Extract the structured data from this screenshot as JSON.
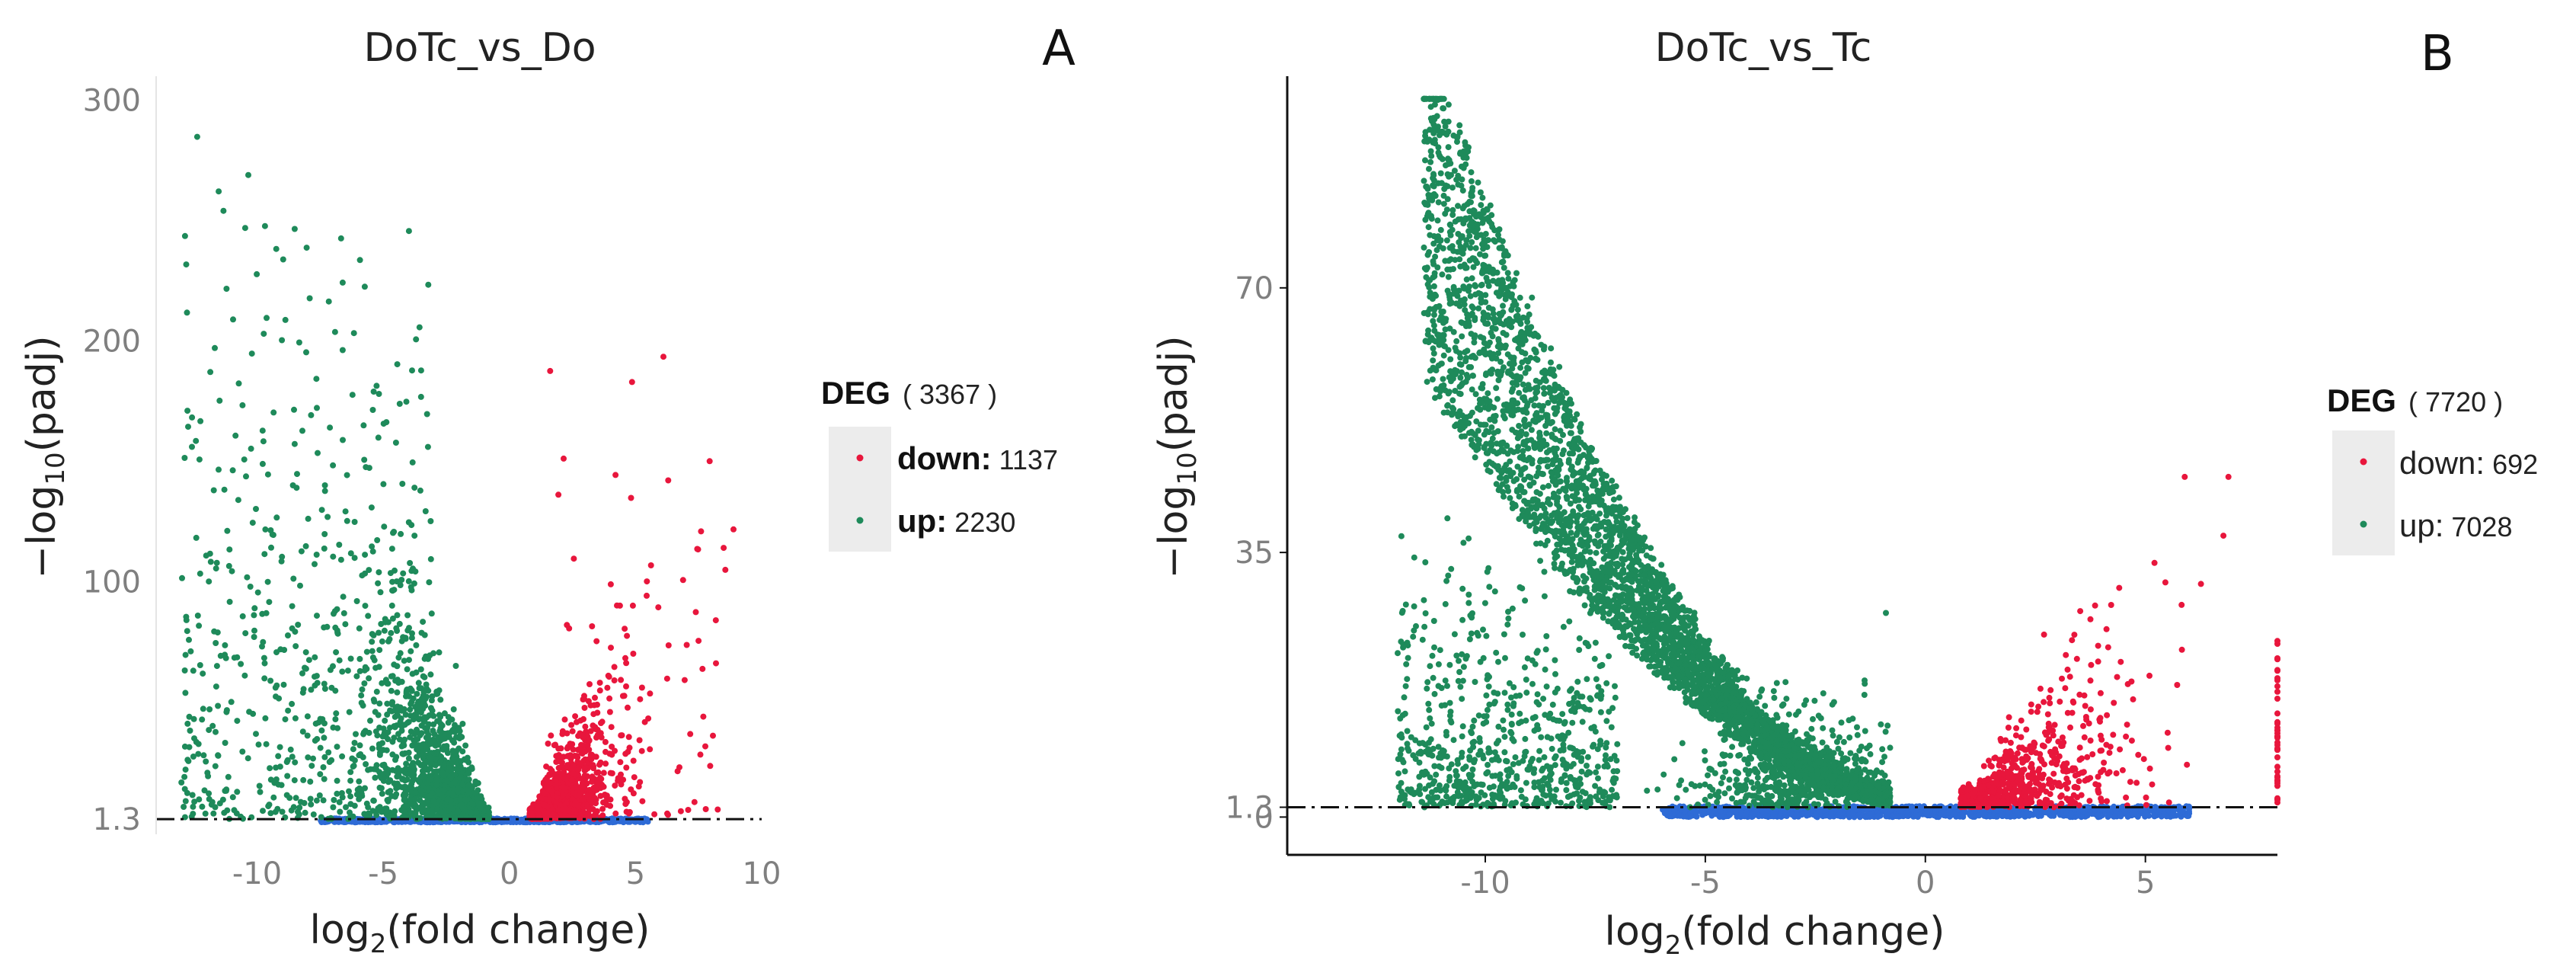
{
  "colors": {
    "down": "#e8163c",
    "up": "#1e8a5a",
    "nodiff": "#2e6bd6",
    "threshold_line": "#111111"
  },
  "chart_data": [
    {
      "type": "scatter",
      "panel_label": "A",
      "title": "DoTc_vs_Do",
      "xlabel_main": "log",
      "xlabel_sub": "2",
      "xlabel_tail": "(fold change)",
      "ylabel_main": "−log",
      "ylabel_sub": "10",
      "ylabel_tail": "(padj)",
      "xlim": [
        -14,
        10
      ],
      "ylim": [
        -5,
        310
      ],
      "xticks": [
        -10,
        -5,
        0,
        5,
        10
      ],
      "xtick_labels": [
        "-10",
        "-5",
        "0",
        "5",
        "10"
      ],
      "yticks": [
        1.3,
        100,
        200,
        300
      ],
      "ytick_labels": [
        "1.3",
        "100",
        "200",
        "300"
      ],
      "threshold_y": 1.3,
      "legend": {
        "title": "DEG",
        "total": "( 3367 )",
        "items": [
          {
            "key": "down",
            "label": "down:",
            "count": "1137"
          },
          {
            "key": "up",
            "label": "up:",
            "count": "2230"
          }
        ]
      },
      "series": [
        {
          "name": "down",
          "count": 1137,
          "x_range": [
            0.8,
            9
          ],
          "y_max": 210
        },
        {
          "name": "up",
          "count": 2230,
          "x_range": [
            -14,
            -0.8
          ],
          "y_max": 290
        },
        {
          "name": "nodiff",
          "x_range": [
            -8,
            6
          ],
          "y_max": 1.3
        }
      ]
    },
    {
      "type": "scatter",
      "panel_label": "B",
      "title": "DoTc_vs_Tc",
      "xlabel_main": "log",
      "xlabel_sub": "2",
      "xlabel_tail": "(fold change)",
      "ylabel_main": "−log",
      "ylabel_sub": "10",
      "ylabel_tail": "(padj)",
      "xlim": [
        -14.5,
        8
      ],
      "ylim": [
        -5,
        98
      ],
      "xticks": [
        -10,
        -5,
        0,
        5
      ],
      "xtick_labels": [
        "-10",
        "-5",
        "0",
        "5"
      ],
      "yticks": [
        0,
        1.3,
        35,
        70
      ],
      "ytick_labels": [
        "0",
        "1.3",
        "35",
        "70"
      ],
      "threshold_y": 1.3,
      "legend": {
        "title": "DEG",
        "total": "( 7720 )",
        "items": [
          {
            "key": "down",
            "label": "down:",
            "count": "692"
          },
          {
            "key": "up",
            "label": "up:",
            "count": "7028"
          }
        ]
      },
      "series": [
        {
          "name": "down",
          "count": 692,
          "x_range": [
            0.8,
            8
          ],
          "y_max": 45
        },
        {
          "name": "up",
          "count": 7028,
          "x_range": [
            -13,
            -0.8
          ],
          "y_max": 95
        },
        {
          "name": "nodiff",
          "x_range": [
            -6,
            6
          ],
          "y_max": 1.3
        }
      ]
    }
  ]
}
